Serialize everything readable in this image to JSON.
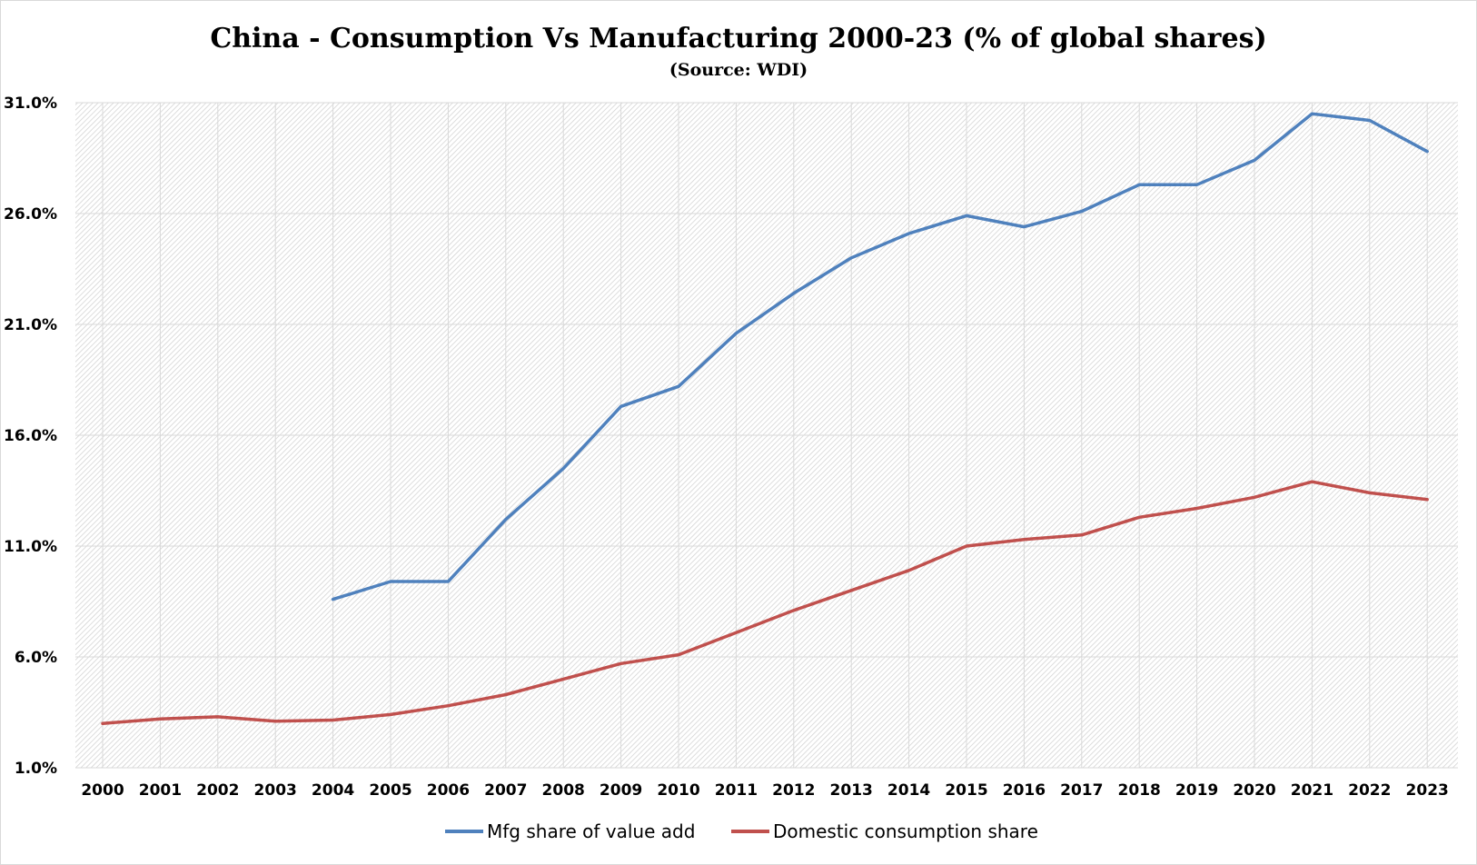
{
  "chart_data": {
    "type": "line",
    "title": "China - Consumption Vs Manufacturing 2000-23 (% of global shares)",
    "subtitle": "(Source: WDI)",
    "xlabel": "",
    "ylabel": "",
    "ylim": [
      1.0,
      31.0
    ],
    "y_ticks": [
      "1.0%",
      "6.0%",
      "11.0%",
      "16.0%",
      "21.0%",
      "26.0%",
      "31.0%"
    ],
    "y_tick_values": [
      1.0,
      6.0,
      11.0,
      16.0,
      21.0,
      26.0,
      31.0
    ],
    "categories": [
      "2000",
      "2001",
      "2002",
      "2003",
      "2004",
      "2005",
      "2006",
      "2007",
      "2008",
      "2009",
      "2010",
      "2011",
      "2012",
      "2013",
      "2014",
      "2015",
      "2016",
      "2017",
      "2018",
      "2019",
      "2020",
      "2021",
      "2022",
      "2023"
    ],
    "grid": true,
    "legend_position": "bottom",
    "series": [
      {
        "name": "Mfg share of value add",
        "color": "#4f81bd",
        "values": [
          null,
          null,
          null,
          null,
          8.6,
          9.4,
          9.4,
          12.2,
          14.5,
          17.3,
          18.2,
          20.6,
          22.4,
          24.0,
          25.1,
          25.9,
          25.4,
          26.1,
          27.3,
          27.3,
          28.4,
          30.5,
          30.2,
          28.8
        ]
      },
      {
        "name": "Domestic consumption share",
        "color": "#c0504d",
        "values": [
          3.0,
          3.2,
          3.3,
          3.1,
          3.15,
          3.4,
          3.8,
          4.3,
          5.0,
          5.7,
          6.1,
          7.1,
          8.1,
          9.0,
          9.9,
          11.0,
          11.3,
          11.5,
          12.3,
          12.7,
          13.2,
          13.9,
          13.4,
          13.1
        ]
      }
    ]
  }
}
